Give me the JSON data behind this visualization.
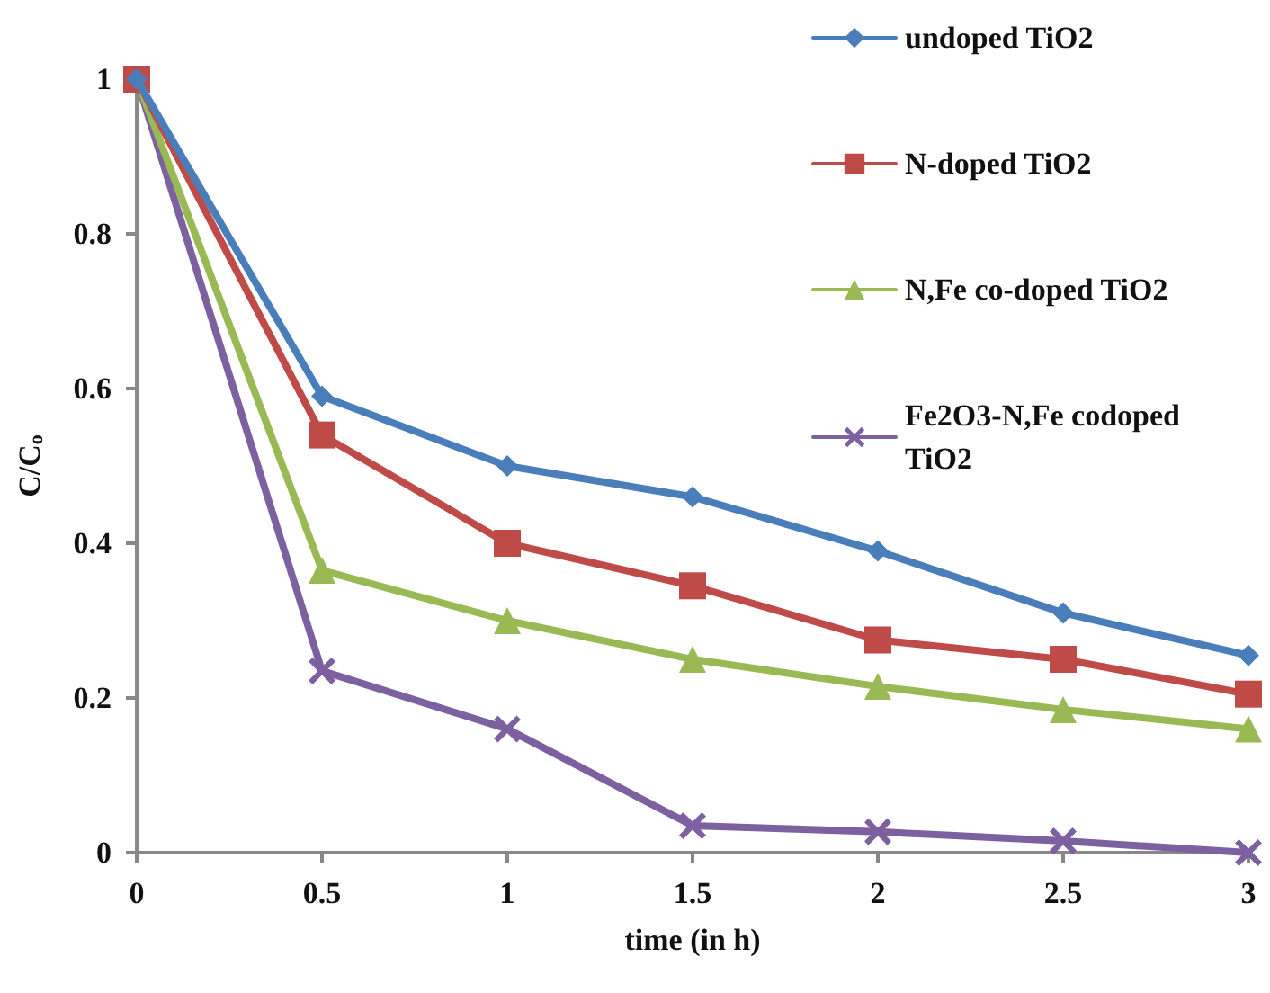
{
  "chart_data": {
    "type": "line",
    "xlabel": "time (in h)",
    "ylabel": "C/C$_{o}$",
    "x": [
      0,
      0.5,
      1,
      1.5,
      2,
      2.5,
      3
    ],
    "xlim": [
      0,
      3
    ],
    "xticks": [
      0,
      0.5,
      1,
      1.5,
      2,
      2.5,
      3
    ],
    "ylim": [
      0,
      1
    ],
    "yticks": [
      0,
      0.2,
      0.4,
      0.6,
      0.8,
      1
    ],
    "grid": false,
    "legend": "top right",
    "line_style": "solid",
    "series": [
      {
        "name": "undoped TiO2",
        "color": "#4a7ebb",
        "marker": "diamond",
        "values": [
          1,
          0.59,
          0.5,
          0.46,
          0.39,
          0.31,
          0.255
        ]
      },
      {
        "name": "N-doped TiO2",
        "color": "#be4b48",
        "marker": "square",
        "values": [
          1,
          0.54,
          0.4,
          0.345,
          0.275,
          0.25,
          0.205
        ]
      },
      {
        "name": "N,Fe co-doped TiO2",
        "color": "#98b954",
        "marker": "triangle",
        "values": [
          1,
          0.365,
          0.3,
          0.25,
          0.215,
          0.185,
          0.16
        ]
      },
      {
        "name": "Fe2O3-N,Fe codoped TiO2",
        "color": "#7d60a0",
        "marker": "cross",
        "values": [
          1,
          0.235,
          0.16,
          0.035,
          0.027,
          0.015,
          0
        ]
      }
    ]
  }
}
